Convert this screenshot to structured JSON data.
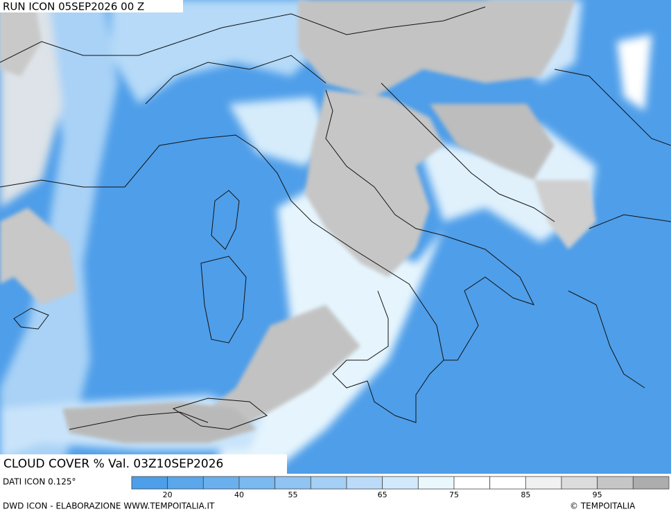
{
  "header": {
    "run": "RUN ICON 05SEP2026 00 Z"
  },
  "title": "CLOUD COVER % Val. 03Z10SEP2026",
  "legend": {
    "label": "DATI ICON 0.125°",
    "colors": [
      "#4c9fe8",
      "#5aa7ec",
      "#6ab0ee",
      "#7bb9f1",
      "#8fc4f3",
      "#a4cff6",
      "#bbdbf8",
      "#d2e9fb",
      "#eaf8fd",
      "#ffffff",
      "#ffffff",
      "#f1f1f1",
      "#dcdcdc",
      "#c6c6c6",
      "#adadad"
    ],
    "ticks": [
      20,
      40,
      55,
      65,
      75,
      85,
      95
    ]
  },
  "footer": {
    "credit": "DWD ICON - ELABORAZIONE WWW.TEMPOITALIA.IT",
    "copyright": "© TEMPOITALIA"
  }
}
